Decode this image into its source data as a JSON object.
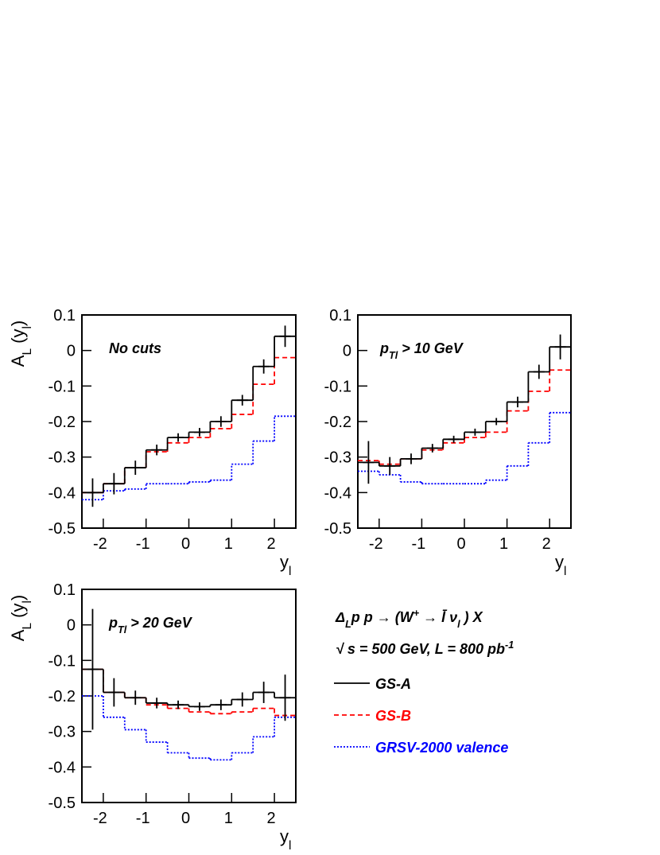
{
  "legend": [
    {
      "name": "GS-A",
      "color": "#000000",
      "dash": "solid"
    },
    {
      "name": "GS-B",
      "color": "#ff0000",
      "dash": "dashed"
    },
    {
      "name": "GRSV-2000 valence",
      "color": "#0000ff",
      "dash": "dotted"
    }
  ],
  "annotations": [
    {
      "parts": [
        {
          "text": "Δ"
        },
        {
          "text": "L",
          "shift": "sub"
        },
        {
          "text": "p p → (W"
        },
        {
          "text": "+",
          "shift": "super"
        },
        {
          "text": " → l̄ ν"
        },
        {
          "text": "l",
          "shift": "sub"
        },
        {
          "text": " ) X"
        }
      ]
    },
    {
      "parts": [
        {
          "text": "√ s = 500 GeV, L = 800 pb"
        },
        {
          "text": "-1",
          "shift": "super"
        }
      ]
    }
  ],
  "chart_data": [
    {
      "type": "histogram",
      "label": {
        "parts": [
          {
            "text": "No cuts"
          }
        ]
      },
      "ylabel": {
        "parts": [
          {
            "text": "A"
          },
          {
            "text": "L",
            "shift": "sub"
          },
          {
            "text": " (y"
          },
          {
            "text": "l",
            "shift": "sub"
          },
          {
            "text": ")"
          }
        ]
      },
      "xlabel": {
        "parts": [
          {
            "text": "y"
          },
          {
            "text": "l",
            "shift": "sub"
          }
        ]
      },
      "bins": [
        -2.5,
        -2,
        -1.5,
        -1,
        -0.5,
        0,
        0.5,
        1,
        1.5,
        2,
        2.5
      ],
      "xlim": [
        -2.5,
        2.5
      ],
      "ylim": [
        -0.5,
        0.1
      ],
      "xticks": [
        -2,
        -1,
        0,
        1,
        2
      ],
      "yticks": [
        0.1,
        0,
        -0.1,
        -0.2,
        -0.3,
        -0.4,
        -0.5
      ],
      "series": [
        {
          "values": [
            -0.4,
            -0.375,
            -0.33,
            -0.28,
            -0.245,
            -0.23,
            -0.2,
            -0.14,
            -0.045,
            0.04
          ],
          "errors": [
            0.04,
            0.03,
            0.02,
            0.015,
            0.012,
            0.012,
            0.015,
            0.015,
            0.02,
            0.03
          ]
        },
        {
          "values": [
            -0.4,
            -0.375,
            -0.33,
            -0.285,
            -0.26,
            -0.245,
            -0.22,
            -0.18,
            -0.095,
            -0.02
          ]
        },
        {
          "values": [
            -0.42,
            -0.395,
            -0.39,
            -0.375,
            -0.375,
            -0.37,
            -0.365,
            -0.32,
            -0.255,
            -0.185
          ]
        }
      ]
    },
    {
      "type": "histogram",
      "label": {
        "parts": [
          {
            "text": "p"
          },
          {
            "text": "Tl",
            "shift": "sub"
          },
          {
            "text": " > 10 GeV"
          }
        ]
      },
      "xlabel": {
        "parts": [
          {
            "text": "y"
          },
          {
            "text": "l",
            "shift": "sub"
          }
        ]
      },
      "bins": [
        -2.5,
        -2,
        -1.5,
        -1,
        -0.5,
        0,
        0.5,
        1,
        1.5,
        2,
        2.5
      ],
      "xlim": [
        -2.5,
        2.5
      ],
      "ylim": [
        -0.5,
        0.1
      ],
      "xticks": [
        -2,
        -1,
        0,
        1,
        2
      ],
      "yticks": [
        0.1,
        0,
        -0.1,
        -0.2,
        -0.3,
        -0.4,
        -0.5
      ],
      "series": [
        {
          "values": [
            -0.315,
            -0.325,
            -0.305,
            -0.275,
            -0.25,
            -0.23,
            -0.2,
            -0.145,
            -0.06,
            0.01
          ],
          "errors": [
            0.06,
            0.025,
            0.015,
            0.012,
            0.01,
            0.01,
            0.01,
            0.015,
            0.02,
            0.035
          ]
        },
        {
          "values": [
            -0.31,
            -0.32,
            -0.305,
            -0.28,
            -0.26,
            -0.245,
            -0.23,
            -0.17,
            -0.115,
            -0.055
          ]
        },
        {
          "values": [
            -0.34,
            -0.35,
            -0.37,
            -0.375,
            -0.375,
            -0.375,
            -0.365,
            -0.325,
            -0.26,
            -0.175
          ]
        }
      ]
    },
    {
      "type": "histogram",
      "label": {
        "parts": [
          {
            "text": "p"
          },
          {
            "text": "Tl",
            "shift": "sub"
          },
          {
            "text": " > 20 GeV"
          }
        ]
      },
      "ylabel": {
        "parts": [
          {
            "text": "A"
          },
          {
            "text": "L",
            "shift": "sub"
          },
          {
            "text": " (y"
          },
          {
            "text": "l",
            "shift": "sub"
          },
          {
            "text": ")"
          }
        ]
      },
      "xlabel": {
        "parts": [
          {
            "text": "y"
          },
          {
            "text": "l",
            "shift": "sub"
          }
        ]
      },
      "bins": [
        -2.5,
        -2,
        -1.5,
        -1,
        -0.5,
        0,
        0.5,
        1,
        1.5,
        2,
        2.5
      ],
      "xlim": [
        -2.5,
        2.5
      ],
      "ylim": [
        -0.5,
        0.1
      ],
      "xticks": [
        -2,
        -1,
        0,
        1,
        2
      ],
      "yticks": [
        0.1,
        0,
        -0.1,
        -0.2,
        -0.3,
        -0.4,
        -0.5
      ],
      "series": [
        {
          "values": [
            -0.125,
            -0.19,
            -0.205,
            -0.22,
            -0.225,
            -0.23,
            -0.225,
            -0.21,
            -0.19,
            -0.205
          ],
          "errors": [
            0.17,
            0.04,
            0.02,
            0.015,
            0.012,
            0.012,
            0.015,
            0.02,
            0.03,
            0.065
          ]
        },
        {
          "values": [
            -0.125,
            -0.19,
            -0.205,
            -0.225,
            -0.235,
            -0.245,
            -0.25,
            -0.245,
            -0.235,
            -0.255
          ]
        },
        {
          "values": [
            -0.2,
            -0.26,
            -0.295,
            -0.33,
            -0.36,
            -0.375,
            -0.38,
            -0.36,
            -0.315,
            -0.26
          ]
        }
      ]
    }
  ]
}
